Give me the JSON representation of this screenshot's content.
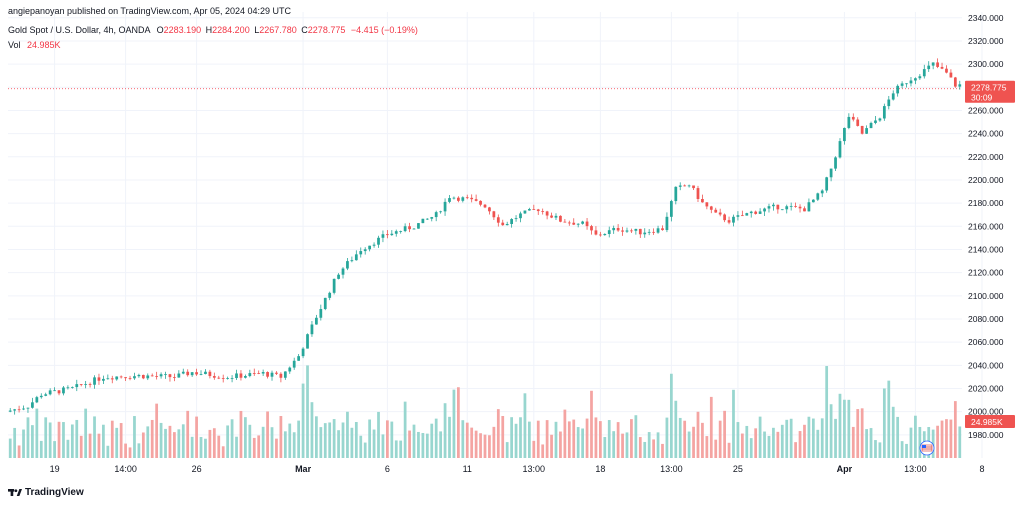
{
  "header": {
    "publisher_line": "angiepanoyan published on TradingView.com, Apr 05, 2024 04:29 UTC",
    "symbol": "Gold Spot / U.S. Dollar, 4h, OANDA",
    "ohlc": {
      "o_label": "O",
      "o": "2283.190",
      "h_label": "H",
      "h": "2284.200",
      "l_label": "L",
      "l": "2267.780",
      "c_label": "C",
      "c": "2278.775",
      "change": "−4.415 (−0.19%)"
    },
    "vol_label": "Vol",
    "vol_value": "24.985K"
  },
  "footer": {
    "brand": "TradingView"
  },
  "colors": {
    "up": "#26a69a",
    "down": "#ef5350",
    "vol_up": "#98d6cf",
    "vol_down": "#f4a4a2",
    "grid": "#f0f3fa",
    "axis_text": "#131722",
    "price_line": "#f23645"
  },
  "chart_data": {
    "type": "candlestick",
    "instrument": "Gold Spot / U.S. Dollar",
    "interval": "4h",
    "ylim": [
      1960,
      2345
    ],
    "y_ticks": [
      "1980.000",
      "2000.000",
      "2020.000",
      "2040.000",
      "2060.000",
      "2080.000",
      "2100.000",
      "2120.000",
      "2140.000",
      "2160.000",
      "2180.000",
      "2200.000",
      "2220.000",
      "2240.000",
      "2260.000",
      "2280.000",
      "2300.000",
      "2320.000",
      "2340.000"
    ],
    "x_ticks": [
      {
        "label": "19",
        "bar": 10,
        "bold": false
      },
      {
        "label": "14:00",
        "bar": 26,
        "bold": false
      },
      {
        "label": "26",
        "bar": 42,
        "bold": false
      },
      {
        "label": "Mar",
        "bar": 66,
        "bold": true
      },
      {
        "label": "6",
        "bar": 85,
        "bold": false
      },
      {
        "label": "11",
        "bar": 103,
        "bold": false
      },
      {
        "label": "13:00",
        "bar": 118,
        "bold": false
      },
      {
        "label": "18",
        "bar": 133,
        "bold": false
      },
      {
        "label": "13:00",
        "bar": 149,
        "bold": false
      },
      {
        "label": "25",
        "bar": 164,
        "bold": false
      },
      {
        "label": "Apr",
        "bar": 188,
        "bold": true
      },
      {
        "label": "13:00",
        "bar": 204,
        "bold": false
      },
      {
        "label": "8",
        "bar": 219,
        "bold": false
      }
    ],
    "last_price_label": "2278.775",
    "countdown_label": "30:09",
    "volume_label": "24.985K",
    "waypoints": [
      [
        0,
        2000
      ],
      [
        5,
        2005
      ],
      [
        8,
        2015
      ],
      [
        15,
        2020
      ],
      [
        22,
        2030
      ],
      [
        30,
        2031
      ],
      [
        38,
        2030
      ],
      [
        42,
        2034
      ],
      [
        50,
        2030
      ],
      [
        58,
        2033
      ],
      [
        62,
        2030
      ],
      [
        66,
        2048
      ],
      [
        70,
        2082
      ],
      [
        75,
        2120
      ],
      [
        80,
        2140
      ],
      [
        86,
        2153
      ],
      [
        92,
        2160
      ],
      [
        97,
        2170
      ],
      [
        100,
        2186
      ],
      [
        104,
        2183
      ],
      [
        108,
        2178
      ],
      [
        112,
        2161
      ],
      [
        116,
        2170
      ],
      [
        120,
        2175
      ],
      [
        125,
        2165
      ],
      [
        130,
        2162
      ],
      [
        133,
        2152
      ],
      [
        138,
        2158
      ],
      [
        143,
        2155
      ],
      [
        148,
        2158
      ],
      [
        151,
        2192
      ],
      [
        154,
        2196
      ],
      [
        157,
        2180
      ],
      [
        160,
        2170
      ],
      [
        163,
        2165
      ],
      [
        168,
        2172
      ],
      [
        174,
        2177
      ],
      [
        180,
        2175
      ],
      [
        184,
        2190
      ],
      [
        186,
        2210
      ],
      [
        190,
        2255
      ],
      [
        193,
        2240
      ],
      [
        197,
        2255
      ],
      [
        200,
        2276
      ],
      [
        203,
        2285
      ],
      [
        206,
        2292
      ],
      [
        209,
        2300
      ],
      [
        212,
        2292
      ],
      [
        214,
        2282
      ]
    ],
    "bars": 215
  }
}
